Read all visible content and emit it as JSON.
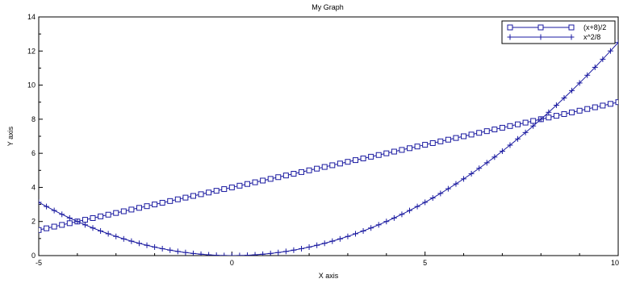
{
  "chart_data": {
    "type": "line",
    "title": "My Graph",
    "xlabel": "X axis",
    "ylabel": "Y axis",
    "xlim": [
      -5,
      10
    ],
    "ylim": [
      0,
      14
    ],
    "x_ticks": [
      -5,
      0,
      5,
      10
    ],
    "x_tick_labels": [
      "-5",
      "0",
      "5",
      "10"
    ],
    "y_ticks": [
      0,
      2,
      4,
      6,
      8,
      10,
      12,
      14
    ],
    "y_tick_labels": [
      "0",
      "2",
      "4",
      "6",
      "8",
      "10",
      "12",
      "14"
    ],
    "grid": false,
    "legend_position": "top-right",
    "series_color": "#1a1aa0",
    "series": [
      {
        "name": "(x+8)/2",
        "marker": "square",
        "x": [
          -5,
          -4.8,
          -4.6,
          -4.4,
          -4.2,
          -4,
          -3.8,
          -3.6,
          -3.4,
          -3.2,
          -3,
          -2.8,
          -2.6,
          -2.4,
          -2.2,
          -2,
          -1.8,
          -1.6,
          -1.4,
          -1.2,
          -1,
          -0.8,
          -0.6,
          -0.4,
          -0.2,
          0,
          0.2,
          0.4,
          0.6,
          0.8,
          1,
          1.2,
          1.4,
          1.6,
          1.8,
          2,
          2.2,
          2.4,
          2.6,
          2.8,
          3,
          3.2,
          3.4,
          3.6,
          3.8,
          4,
          4.2,
          4.4,
          4.6,
          4.8,
          5,
          5.2,
          5.4,
          5.6,
          5.8,
          6,
          6.2,
          6.4,
          6.6,
          6.8,
          7,
          7.2,
          7.4,
          7.6,
          7.8,
          8,
          8.2,
          8.4,
          8.6,
          8.8,
          9,
          9.2,
          9.4,
          9.6,
          9.8,
          10
        ],
        "y": [
          1.5,
          1.6,
          1.7,
          1.8,
          1.9,
          2,
          2.1,
          2.2,
          2.3,
          2.4,
          2.5,
          2.6,
          2.7,
          2.8,
          2.9,
          3,
          3.1,
          3.2,
          3.3,
          3.4,
          3.5,
          3.6,
          3.7,
          3.8,
          3.9,
          4,
          4.1,
          4.2,
          4.3,
          4.4,
          4.5,
          4.6,
          4.7,
          4.8,
          4.9,
          5,
          5.1,
          5.2,
          5.3,
          5.4,
          5.5,
          5.6,
          5.7,
          5.8,
          5.9,
          6,
          6.1,
          6.2,
          6.3,
          6.4,
          6.5,
          6.6,
          6.7,
          6.8,
          6.9,
          7,
          7.1,
          7.2,
          7.3,
          7.4,
          7.5,
          7.6,
          7.7,
          7.8,
          7.9,
          8,
          8.1,
          8.2,
          8.3,
          8.4,
          8.5,
          8.6,
          8.7,
          8.8,
          8.9,
          9
        ]
      },
      {
        "name": "x^2/8",
        "marker": "plus",
        "x": [
          -5,
          -4.8,
          -4.6,
          -4.4,
          -4.2,
          -4,
          -3.8,
          -3.6,
          -3.4,
          -3.2,
          -3,
          -2.8,
          -2.6,
          -2.4,
          -2.2,
          -2,
          -1.8,
          -1.6,
          -1.4,
          -1.2,
          -1,
          -0.8,
          -0.6,
          -0.4,
          -0.2,
          0,
          0.2,
          0.4,
          0.6,
          0.8,
          1,
          1.2,
          1.4,
          1.6,
          1.8,
          2,
          2.2,
          2.4,
          2.6,
          2.8,
          3,
          3.2,
          3.4,
          3.6,
          3.8,
          4,
          4.2,
          4.4,
          4.6,
          4.8,
          5,
          5.2,
          5.4,
          5.6,
          5.8,
          6,
          6.2,
          6.4,
          6.6,
          6.8,
          7,
          7.2,
          7.4,
          7.6,
          7.8,
          8,
          8.2,
          8.4,
          8.6,
          8.8,
          9,
          9.2,
          9.4,
          9.6,
          9.8,
          10
        ],
        "y": [
          3.125,
          2.88,
          2.645,
          2.42,
          2.205,
          2,
          1.805,
          1.62,
          1.445,
          1.28,
          1.125,
          0.98,
          0.845,
          0.72,
          0.605,
          0.5,
          0.405,
          0.32,
          0.245,
          0.18,
          0.125,
          0.08,
          0.045,
          0.02,
          0.005,
          0,
          0.005,
          0.02,
          0.045,
          0.08,
          0.125,
          0.18,
          0.245,
          0.32,
          0.405,
          0.5,
          0.605,
          0.72,
          0.845,
          0.98,
          1.125,
          1.28,
          1.445,
          1.62,
          1.805,
          2,
          2.205,
          2.42,
          2.645,
          2.88,
          3.125,
          3.38,
          3.645,
          3.92,
          4.205,
          4.5,
          4.805,
          5.12,
          5.445,
          5.78,
          6.125,
          6.48,
          6.845,
          7.22,
          7.605,
          8,
          8.405,
          8.82,
          9.245,
          9.68,
          10.125,
          10.58,
          11.045,
          11.52,
          12.005,
          12.5
        ]
      }
    ]
  }
}
